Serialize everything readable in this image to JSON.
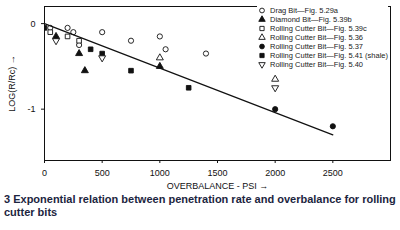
{
  "chart_data": {
    "type": "scatter",
    "caption": "3   Exponential relation between penetration rate and overbalance for rolling cutter bits",
    "xlabel": "OVERBALANCE - PSI",
    "ylabel": "LOG(R/Rc)",
    "xlim": [
      0,
      3000
    ],
    "xticks": [
      0,
      500,
      1000,
      1500,
      2000,
      2500
    ],
    "ylim": [
      -1.6,
      0.2
    ],
    "yticks": [
      0,
      -1
    ],
    "grid": false,
    "legend": "upper right",
    "series": [
      {
        "name": "Drag Bit—Fig. 5.29a",
        "marker": "circle-open",
        "color": "#111111",
        "x": [
          50,
          200,
          250,
          300,
          500,
          750,
          1000,
          1050,
          1400
        ],
        "values": [
          -0.05,
          -0.05,
          -0.1,
          -0.25,
          -0.1,
          -0.2,
          -0.15,
          -0.3,
          -0.35
        ]
      },
      {
        "name": "Diamond Bit—Fig. 5.39b",
        "marker": "triangle-filled",
        "color": "#111111",
        "x": [
          100,
          300,
          350,
          1000
        ],
        "values": [
          -0.15,
          -0.35,
          -0.55,
          -0.5
        ]
      },
      {
        "name": "Rolling Cutter Bit—Fig. 5.39c",
        "marker": "square-open",
        "color": "#111111",
        "x": [
          50,
          200,
          300
        ],
        "values": [
          -0.1,
          -0.15,
          -0.2
        ]
      },
      {
        "name": "Rolling Cutter Bit—Fig. 5.36",
        "marker": "triangle-open",
        "color": "#111111",
        "x": [
          1000,
          2000
        ],
        "values": [
          -0.4,
          -0.65
        ]
      },
      {
        "name": "Rolling Cutter Bit—Fig. 5.37",
        "marker": "circle-filled",
        "color": "#111111",
        "x": [
          2000,
          2500
        ],
        "values": [
          -1.0,
          -1.2
        ]
      },
      {
        "name": "Rolling Cutter Bit—Fig. 5.41 (shale)",
        "marker": "square-filled",
        "color": "#111111",
        "x": [
          0,
          400,
          500,
          750,
          1250
        ],
        "values": [
          -0.05,
          -0.3,
          -0.35,
          -0.55,
          -0.75
        ]
      },
      {
        "name": "Rolling Cutter Bit—Fig. 5.40",
        "marker": "triangledown-open",
        "color": "#111111",
        "x": [
          100,
          500,
          2000
        ],
        "values": [
          -0.2,
          -0.4,
          -0.75
        ]
      },
      {
        "type": "line",
        "line_style": "solid",
        "color": "#111111",
        "x": [
          0,
          2500
        ],
        "values": [
          0,
          -1.3
        ]
      }
    ]
  }
}
